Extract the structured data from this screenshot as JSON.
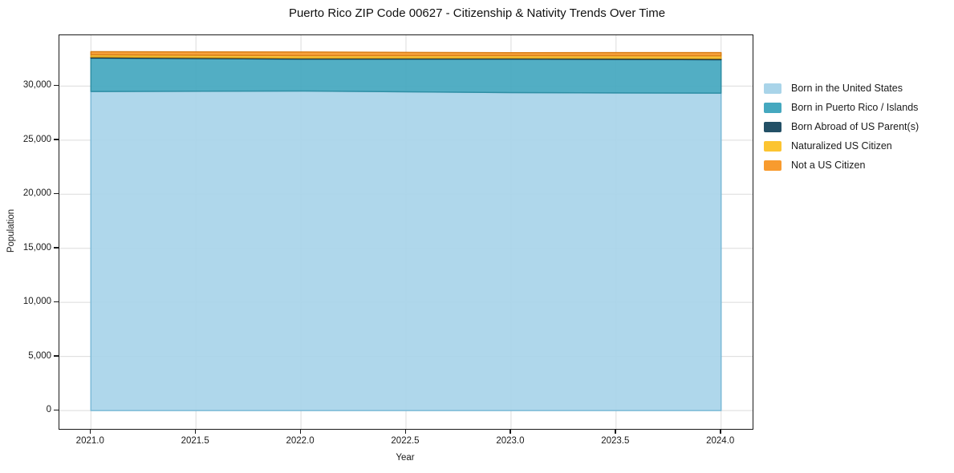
{
  "figure": {
    "title": "Puerto Rico ZIP Code 00627 - Citizenship & Nativity Trends Over Time"
  },
  "chart_data": {
    "type": "area",
    "stacked": true,
    "title": "Puerto Rico ZIP Code 00627 - Citizenship & Nativity Trends Over Time",
    "xlabel": "Year",
    "ylabel": "Population",
    "x": [
      2021,
      2022,
      2023,
      2024
    ],
    "series": [
      {
        "name": "Born in the United States",
        "values": [
          29500,
          29550,
          29400,
          29350
        ],
        "color": "#a9d4e9",
        "edge_color": "#7cbad7"
      },
      {
        "name": "Born in Puerto Rico / Islands",
        "values": [
          3100,
          2950,
          3100,
          3100
        ],
        "color": "#45a8bf",
        "edge_color": "#2f8fa5"
      },
      {
        "name": "Born Abroad of US Parent(s)",
        "values": [
          100,
          100,
          100,
          100
        ],
        "color": "#235066",
        "edge_color": "#16323f"
      },
      {
        "name": "Naturalized US Citizen",
        "values": [
          200,
          220,
          220,
          250
        ],
        "color": "#fcc431",
        "edge_color": "#e0a51c"
      },
      {
        "name": "Not a US Citizen",
        "values": [
          280,
          330,
          270,
          300
        ],
        "color": "#f89b2e",
        "edge_color": "#d97f18"
      }
    ],
    "xlim": [
      2020.85,
      2024.15
    ],
    "ylim": [
      -1700,
      34700
    ],
    "x_ticks": {
      "values": [
        2021,
        2021.5,
        2022,
        2022.5,
        2023,
        2023.5,
        2024
      ],
      "labels": [
        "2021.0",
        "2021.5",
        "2022.0",
        "2022.5",
        "2023.0",
        "2023.5",
        "2024.0"
      ]
    },
    "y_ticks": {
      "values": [
        0,
        5000,
        10000,
        15000,
        20000,
        25000,
        30000
      ],
      "labels": [
        "0",
        "5,000",
        "10,000",
        "15,000",
        "20,000",
        "25,000",
        "30,000"
      ]
    },
    "grid": true,
    "legend_position": "right",
    "colors": {
      "grid": "#dcdcdc",
      "spine": "#1a1a1a",
      "background": "#ffffff",
      "text": "#1a1a1a"
    }
  }
}
